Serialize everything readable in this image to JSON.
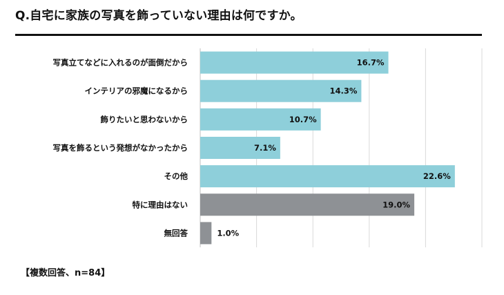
{
  "title": "Q.自宅に家族の写真を飾っていない理由は何ですか。",
  "footnote": "【複数回答、n=84】",
  "colors": {
    "primary": "#8ecfda",
    "gray": "#8e9195",
    "grid": "#d9d9d9"
  },
  "chart_data": {
    "type": "bar",
    "orientation": "horizontal",
    "categories": [
      "写真立てなどに入れるのが面倒だから",
      "インテリアの邪魔になるから",
      "飾りたいと思わないから",
      "写真を飾るという発想がなかったから",
      "その他",
      "特に理由はない",
      "無回答"
    ],
    "values": [
      16.7,
      14.3,
      10.7,
      7.1,
      22.6,
      19.0,
      1.0
    ],
    "value_labels": [
      "16.7%",
      "14.3%",
      "10.7%",
      "7.1%",
      "22.6%",
      "19.0%",
      "1.0%"
    ],
    "bar_colors": [
      "primary",
      "primary",
      "primary",
      "primary",
      "primary",
      "gray",
      "gray"
    ],
    "xlim": [
      0,
      25
    ],
    "grid": true
  }
}
